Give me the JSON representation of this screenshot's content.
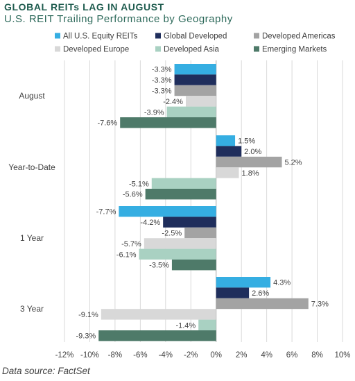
{
  "header": {
    "title": "GLOBAL REITs LAG IN AUGUST",
    "subtitle": "U.S. REIT Trailing Performance by Geography"
  },
  "footer": {
    "source": "Data source: FactSet"
  },
  "chart_data": {
    "type": "bar",
    "orientation": "horizontal",
    "categories": [
      "August",
      "Year-to-Date",
      "1 Year",
      "3 Year"
    ],
    "series": [
      {
        "name": "All U.S. Equity REITs",
        "color": "#35aee2",
        "values": [
          -3.3,
          1.5,
          -7.7,
          4.3
        ]
      },
      {
        "name": "Global Developed",
        "color": "#1f2e5c",
        "values": [
          -3.3,
          2.0,
          -4.2,
          2.6
        ]
      },
      {
        "name": "Developed Americas",
        "color": "#a3a3a3",
        "values": [
          -3.3,
          5.2,
          -2.5,
          7.3
        ]
      },
      {
        "name": "Developed Europe",
        "color": "#d8d8d8",
        "values": [
          -2.4,
          1.8,
          -5.7,
          -9.1
        ]
      },
      {
        "name": "Developed Asia",
        "color": "#a9d1c2",
        "values": [
          -3.9,
          -5.1,
          -6.1,
          -1.4
        ]
      },
      {
        "name": "Emerging Markets",
        "color": "#4e7a69",
        "values": [
          -7.6,
          -5.6,
          -3.5,
          -9.3
        ]
      }
    ],
    "data_labels": [
      [
        "-3.3%",
        "1.5%",
        "-7.7%",
        "4.3%"
      ],
      [
        "-3.3%",
        "2.0%",
        "-4.2%",
        "2.6%"
      ],
      [
        "-3.3%",
        "5.2%",
        "-2.5%",
        "7.3%"
      ],
      [
        "-2.4%",
        "1.8%",
        "-5.7%",
        "-9.1%"
      ],
      [
        "-3.9%",
        "-5.1%",
        "-6.1%",
        "-1.4%"
      ],
      [
        "-7.6%",
        "-5.6%",
        "-3.5%",
        "-9.3%"
      ]
    ],
    "x_ticks": [
      "-12%",
      "-10%",
      "-8%",
      "-6%",
      "-4%",
      "-2%",
      "0%",
      "2%",
      "4%",
      "6%",
      "8%",
      "10%"
    ],
    "xlim": [
      -12,
      10
    ],
    "x_tick_step": 2,
    "unit": "%",
    "grid": "vertical",
    "legend_position": "top"
  }
}
